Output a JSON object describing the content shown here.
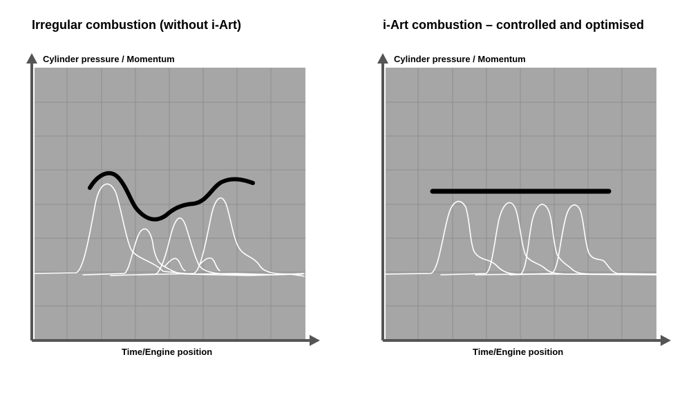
{
  "colors": {
    "plot_background": "#a6a6a6",
    "grid": "#8e8e8e",
    "axis": "#555555",
    "pressure_traces": "#ffffff",
    "momentum_line": "#000000"
  },
  "panels": [
    {
      "title": "Irregular combustion (without i-Art)",
      "y_axis_label": "Cylinder pressure / Momentum",
      "x_axis_label": "Time/Engine position",
      "momentum_pattern": "irregular",
      "pressure_peaks": "uneven"
    },
    {
      "title": "i-Art combustion – controlled and optimised",
      "y_axis_label": "Cylinder pressure / Momentum",
      "x_axis_label": "Time/Engine position",
      "momentum_pattern": "constant",
      "pressure_peaks": "uniform"
    }
  ]
}
